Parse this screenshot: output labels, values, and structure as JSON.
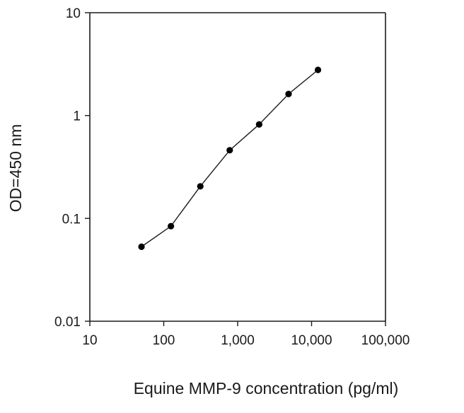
{
  "chart_data": {
    "type": "line",
    "title": "",
    "xlabel": "Equine MMP-9 concentration (pg/ml)",
    "ylabel": "OD=450 nm",
    "x_scale": "log",
    "y_scale": "log",
    "xlim": [
      10,
      100000
    ],
    "ylim": [
      0.01,
      10
    ],
    "x_ticks": [
      10,
      100,
      1000,
      10000,
      100000
    ],
    "x_tick_labels": [
      "10",
      "100",
      "1,000",
      "10,000",
      "100,000"
    ],
    "y_ticks": [
      0.01,
      0.1,
      1,
      10
    ],
    "y_tick_labels": [
      "0.01",
      "0.1",
      "1",
      "10"
    ],
    "grid": false,
    "legend": "none",
    "colors": {
      "line": "#1a1a1a",
      "marker": "#000000",
      "axis": "#1a1a1a"
    },
    "series": [
      {
        "x": [
          50,
          125,
          312.5,
          781,
          1953,
          4883,
          12207
        ],
        "y": [
          0.053,
          0.084,
          0.205,
          0.46,
          0.82,
          1.62,
          2.78
        ]
      }
    ]
  }
}
